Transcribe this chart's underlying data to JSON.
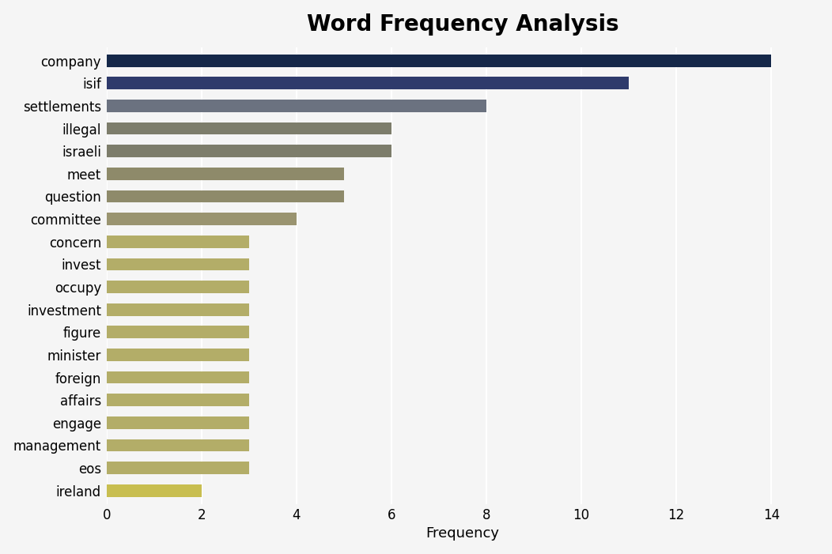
{
  "title": "Word Frequency Analysis",
  "xlabel": "Frequency",
  "categories": [
    "company",
    "isif",
    "settlements",
    "illegal",
    "israeli",
    "meet",
    "question",
    "committee",
    "concern",
    "invest",
    "occupy",
    "investment",
    "figure",
    "minister",
    "foreign",
    "affairs",
    "engage",
    "management",
    "eos",
    "ireland"
  ],
  "values": [
    14,
    11,
    8,
    6,
    6,
    5,
    5,
    4,
    3,
    3,
    3,
    3,
    3,
    3,
    3,
    3,
    3,
    3,
    3,
    2
  ],
  "bar_colors": [
    "#152849",
    "#2e3a6b",
    "#6b7280",
    "#7d7d6b",
    "#7d7d6b",
    "#8e8a6a",
    "#8e8a6a",
    "#9a9470",
    "#b3ad68",
    "#b3ad68",
    "#b3ad68",
    "#b3ad68",
    "#b3ad68",
    "#b3ad68",
    "#b3ad68",
    "#b3ad68",
    "#b3ad68",
    "#b3ad68",
    "#b3ad68",
    "#c8be50"
  ],
  "background_color": "#f5f5f5",
  "plot_bg_color": "#f5f5f5",
  "xlim": [
    0,
    15
  ],
  "xticks": [
    0,
    2,
    4,
    6,
    8,
    10,
    12,
    14
  ],
  "title_fontsize": 20,
  "tick_fontsize": 12,
  "label_fontsize": 13,
  "bar_height": 0.55,
  "figsize": [
    10.52,
    7.01
  ]
}
